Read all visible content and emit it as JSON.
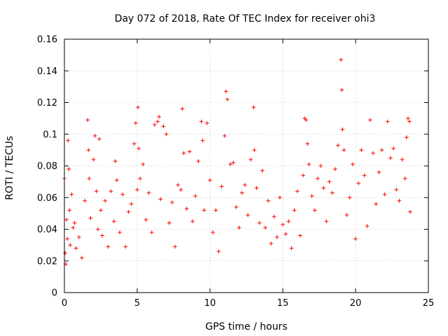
{
  "chart_data": {
    "type": "scatter",
    "title": "Day 072 of 2018, Rate Of TEC Index for receiver ohi3",
    "xlabel": "GPS time / hours",
    "ylabel": "ROTI / TECUs",
    "xlim": [
      0,
      25
    ],
    "ylim": [
      0,
      0.16
    ],
    "xticks": [
      0,
      5,
      10,
      15,
      20,
      25
    ],
    "yticks": [
      0,
      0.02,
      0.04,
      0.06,
      0.08,
      0.1,
      0.12,
      0.14,
      0.16
    ],
    "ytick_labels": [
      "0",
      "0.02",
      "0.04",
      "0.06",
      "0.08",
      "0.1",
      "0.12",
      "0.14",
      "0.16"
    ],
    "grid": true,
    "marker": "+",
    "color": "#ff0000",
    "series": [
      {
        "name": "ROTI",
        "x": [
          0.0,
          0.05,
          0.1,
          0.15,
          0.2,
          0.25,
          0.3,
          0.35,
          0.4,
          0.5,
          0.6,
          0.7,
          0.8,
          1.0,
          1.2,
          1.4,
          1.6,
          1.65,
          1.7,
          1.8,
          2.0,
          2.1,
          2.2,
          2.3,
          2.4,
          2.5,
          2.6,
          2.8,
          3.0,
          3.2,
          3.4,
          3.5,
          3.6,
          3.8,
          4.0,
          4.2,
          4.4,
          4.6,
          4.8,
          4.9,
          5.0,
          5.05,
          5.1,
          5.2,
          5.4,
          5.6,
          5.8,
          6.0,
          6.2,
          6.4,
          6.5,
          6.6,
          6.8,
          7.0,
          7.2,
          7.4,
          7.6,
          7.8,
          8.0,
          8.1,
          8.2,
          8.4,
          8.6,
          8.8,
          9.0,
          9.2,
          9.4,
          9.5,
          9.6,
          9.8,
          10.0,
          10.2,
          10.4,
          10.6,
          10.8,
          11.0,
          11.1,
          11.2,
          11.4,
          11.6,
          11.8,
          12.0,
          12.2,
          12.4,
          12.6,
          12.8,
          13.0,
          13.05,
          13.2,
          13.4,
          13.6,
          13.8,
          14.0,
          14.2,
          14.4,
          14.6,
          14.8,
          15.0,
          15.2,
          15.4,
          15.6,
          15.8,
          16.0,
          16.2,
          16.4,
          16.5,
          16.6,
          16.7,
          16.8,
          17.0,
          17.2,
          17.4,
          17.6,
          17.8,
          18.0,
          18.2,
          18.4,
          18.6,
          18.8,
          19.0,
          19.05,
          19.1,
          19.2,
          19.4,
          19.6,
          19.8,
          20.0,
          20.2,
          20.4,
          20.6,
          20.8,
          21.0,
          21.2,
          21.4,
          21.6,
          21.8,
          22.0,
          22.2,
          22.4,
          22.6,
          22.8,
          23.0,
          23.2,
          23.4,
          23.5,
          23.6,
          23.7,
          23.75
        ],
        "y": [
          0.072,
          0.025,
          0.018,
          0.046,
          0.034,
          0.096,
          0.078,
          0.052,
          0.03,
          0.062,
          0.041,
          0.044,
          0.028,
          0.035,
          0.022,
          0.058,
          0.109,
          0.09,
          0.072,
          0.047,
          0.084,
          0.099,
          0.064,
          0.04,
          0.097,
          0.052,
          0.036,
          0.058,
          0.029,
          0.064,
          0.045,
          0.083,
          0.071,
          0.038,
          0.062,
          0.029,
          0.051,
          0.056,
          0.094,
          0.107,
          0.065,
          0.117,
          0.091,
          0.072,
          0.081,
          0.046,
          0.063,
          0.038,
          0.106,
          0.108,
          0.111,
          0.059,
          0.105,
          0.1,
          0.044,
          0.057,
          0.029,
          0.068,
          0.065,
          0.116,
          0.088,
          0.053,
          0.089,
          0.045,
          0.061,
          0.083,
          0.108,
          0.096,
          0.052,
          0.107,
          0.071,
          0.038,
          0.052,
          0.026,
          0.067,
          0.099,
          0.127,
          0.122,
          0.081,
          0.082,
          0.054,
          0.041,
          0.063,
          0.068,
          0.049,
          0.084,
          0.117,
          0.09,
          0.066,
          0.044,
          0.077,
          0.041,
          0.058,
          0.031,
          0.048,
          0.035,
          0.06,
          0.043,
          0.037,
          0.045,
          0.028,
          0.052,
          0.064,
          0.036,
          0.074,
          0.11,
          0.109,
          0.094,
          0.081,
          0.061,
          0.052,
          0.072,
          0.08,
          0.066,
          0.045,
          0.07,
          0.063,
          0.078,
          0.093,
          0.147,
          0.128,
          0.103,
          0.09,
          0.049,
          0.06,
          0.081,
          0.034,
          0.069,
          0.09,
          0.074,
          0.042,
          0.109,
          0.088,
          0.056,
          0.076,
          0.09,
          0.062,
          0.108,
          0.085,
          0.091,
          0.065,
          0.058,
          0.084,
          0.072,
          0.098,
          0.11,
          0.108,
          0.051
        ]
      }
    ]
  }
}
